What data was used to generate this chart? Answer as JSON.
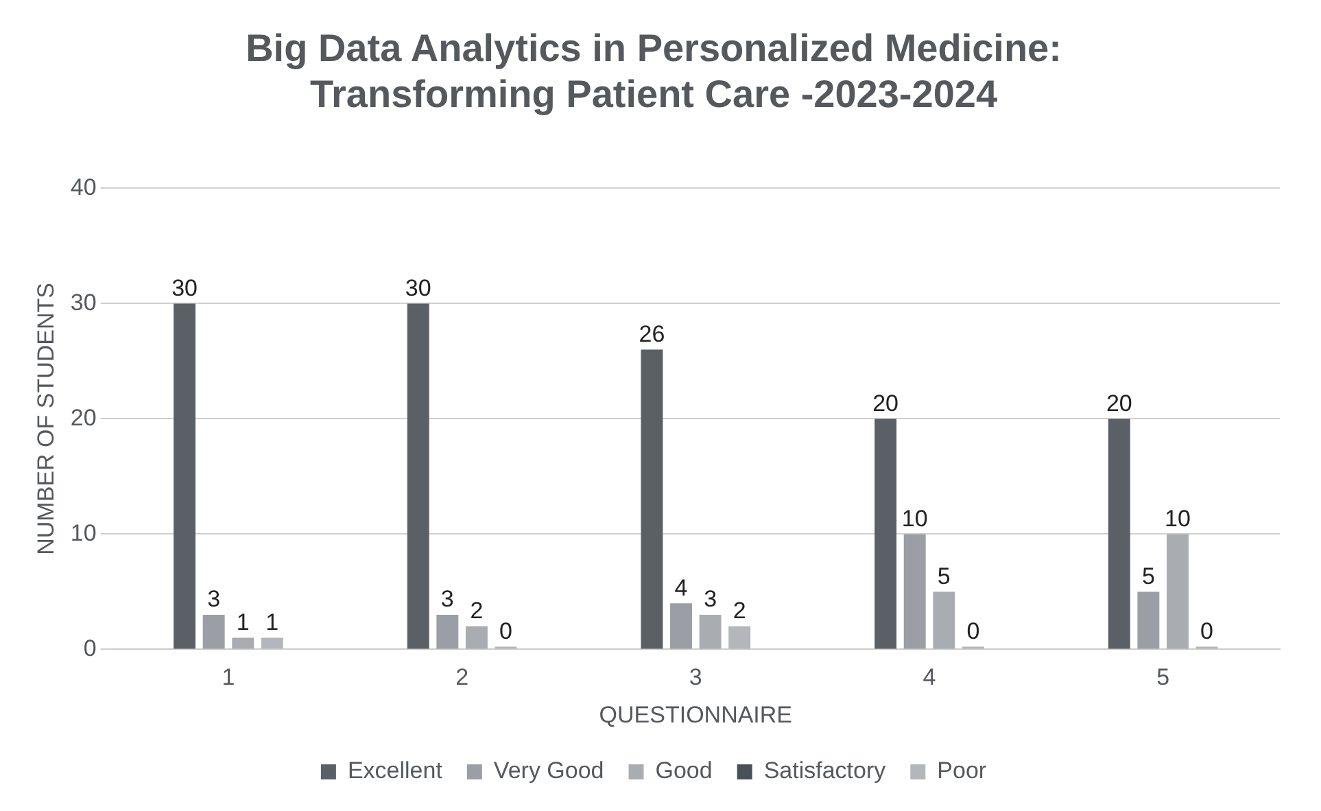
{
  "chart_data": {
    "type": "bar",
    "title": [
      "Big Data Analytics in Personalized Medicine:",
      "Transforming Patient Care -2023-2024"
    ],
    "xlabel": "QUESTIONNAIRE",
    "ylabel": "NUMBER OF STUDENTS",
    "categories": [
      "1",
      "2",
      "3",
      "4",
      "5"
    ],
    "series": [
      {
        "name": "Excellent",
        "color": "#5b6067",
        "values": [
          30,
          30,
          26,
          20,
          20
        ]
      },
      {
        "name": "Very Good",
        "color": "#9b9fa5",
        "values": [
          3,
          3,
          4,
          10,
          5
        ]
      },
      {
        "name": "Good",
        "color": "#a9acb1",
        "values": [
          1,
          2,
          3,
          5,
          10
        ]
      },
      {
        "name": "Satisfactory",
        "color": "#4a5058",
        "values": [
          null,
          null,
          null,
          null,
          null
        ]
      },
      {
        "name": "Poor",
        "color": "#b3b6ba",
        "values": [
          1,
          0,
          2,
          0,
          0
        ]
      }
    ],
    "ylim": [
      0,
      40
    ],
    "yticks": [
      0,
      10,
      20,
      30,
      40
    ],
    "grid": "y",
    "legend": "bottom",
    "data_labels": true
  }
}
